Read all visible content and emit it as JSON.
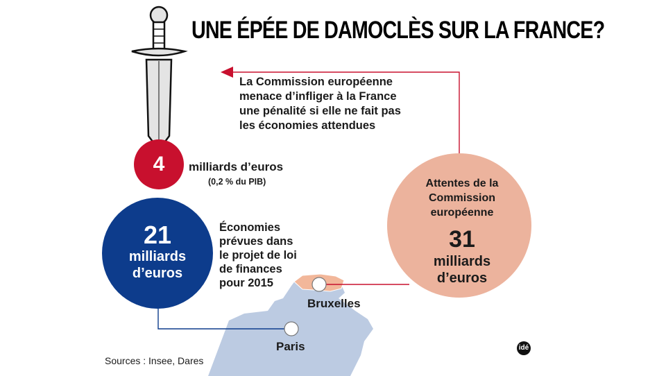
{
  "title": "UNE ÉPÉE DE DAMOCLÈS SUR LA FRANCE?",
  "callout": {
    "lines": [
      "La Commission européenne",
      "menace d’infliger à la France",
      "une pénalité si elle ne fait pas",
      "les économies attendues"
    ]
  },
  "penalty": {
    "value": "4",
    "label": "milliards d’euros",
    "sublabel": "(0,2 % du PIB)"
  },
  "planned": {
    "value": "21",
    "unit_line1": "milliards",
    "unit_line2": "d’euros",
    "description": [
      "Économies",
      "prévues dans",
      "le projet de loi",
      "de finances",
      "pour 2015"
    ]
  },
  "expected": {
    "heading": [
      "Attentes de la",
      "Commission",
      "européenne"
    ],
    "value": "31",
    "unit_line1": "milliards",
    "unit_line2": "d’euros"
  },
  "cities": {
    "brussels": "Bruxelles",
    "paris": "Paris"
  },
  "sources": "Sources : Insee, Dares",
  "logo": "idé",
  "colors": {
    "red": "#c8102e",
    "blue": "#0d3c8c",
    "salmon": "#ecb39d",
    "map_france": "#bccbe2",
    "map_belgium": "#f2b79a",
    "sword": "#e4e4e4"
  }
}
